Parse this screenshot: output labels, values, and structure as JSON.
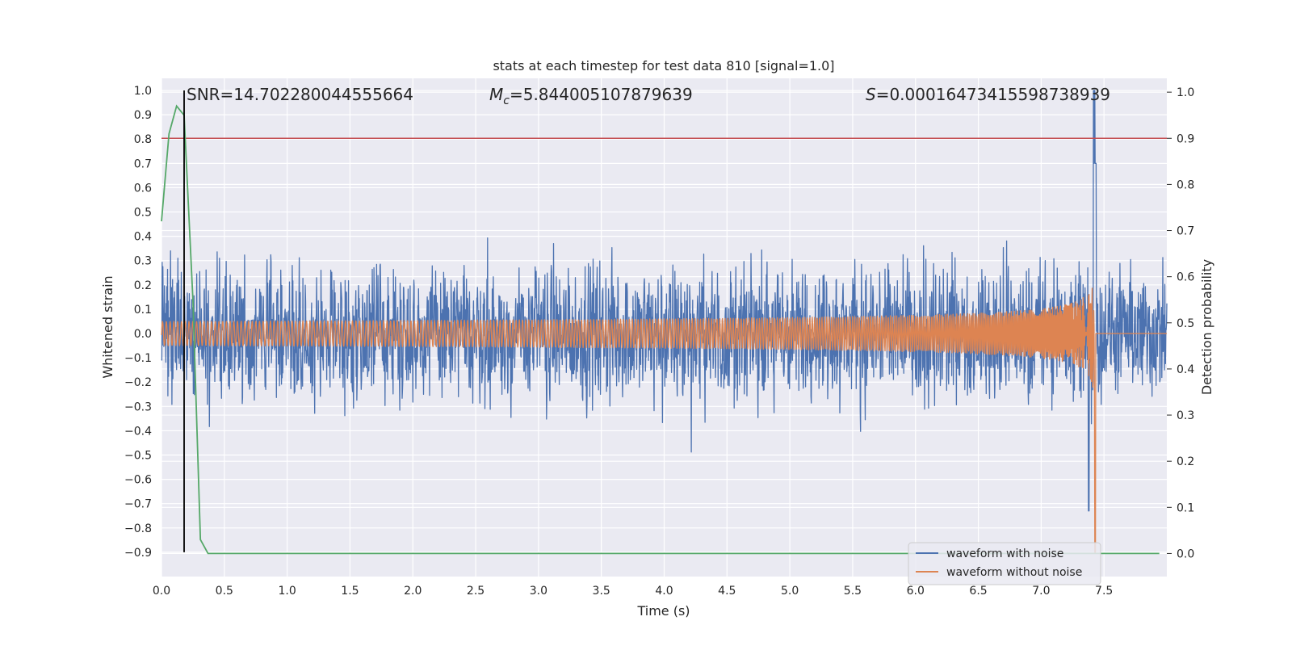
{
  "chart_data": {
    "type": "line",
    "title": "stats at each timestep for test data 810 [signal=1.0]",
    "xlabel": "Time (s)",
    "ylabel_left": "Whitened strain",
    "ylabel_right": "Detection probability",
    "xlim": [
      0.0,
      8.0
    ],
    "ylim_left": [
      -1.0,
      1.05
    ],
    "ylim_right": [
      -0.05,
      1.03
    ],
    "x_ticks": [
      0.0,
      0.5,
      1.0,
      1.5,
      2.0,
      2.5,
      3.0,
      3.5,
      4.0,
      4.5,
      5.0,
      5.5,
      6.0,
      6.5,
      7.0,
      7.5
    ],
    "x_tick_labels": [
      "0.0",
      "0.5",
      "1.0",
      "1.5",
      "2.0",
      "2.5",
      "3.0",
      "3.5",
      "4.0",
      "4.5",
      "5.0",
      "5.5",
      "6.0",
      "6.5",
      "7.0",
      "7.5"
    ],
    "y_ticks_left": [
      1.0,
      0.9,
      0.8,
      0.7,
      0.6,
      0.5,
      0.4,
      0.3,
      0.2,
      0.1,
      0.0,
      -0.1,
      -0.2,
      -0.3,
      -0.4,
      -0.5,
      -0.6,
      -0.7,
      -0.8,
      -0.9
    ],
    "y_tick_labels_left": [
      "1.0",
      "0.9",
      "0.8",
      "0.7",
      "0.6",
      "0.5",
      "0.4",
      "0.3",
      "0.2",
      "0.1",
      "0.0",
      "−0.1",
      "−0.2",
      "−0.3",
      "−0.4",
      "−0.5",
      "−0.6",
      "−0.7",
      "−0.8",
      "−0.9"
    ],
    "y_ticks_right": [
      1.0,
      0.9,
      0.8,
      0.7,
      0.6,
      0.5,
      0.4,
      0.3,
      0.2,
      0.1,
      0.0
    ],
    "y_tick_labels_right": [
      "1.0",
      "0.9",
      "0.8",
      "0.7",
      "0.6",
      "0.5",
      "0.4",
      "0.3",
      "0.2",
      "0.1",
      "0.0"
    ],
    "grid": true,
    "background_color": "#EAEAF2",
    "annotations": {
      "snr": "SNR=14.702280044555664",
      "mc_symbol": "M",
      "mc_subscript": "c",
      "mc_value": "=5.844005107879639",
      "s_symbol": "S",
      "s_value": "=0.00016473415598738939"
    },
    "vertical_line": {
      "x": 0.18,
      "color": "#000000"
    },
    "threshold_line": {
      "axis": "right",
      "y": 0.9,
      "color": "#C44E52"
    },
    "merger_time": 7.43,
    "series": [
      {
        "name": "waveform with noise",
        "axis": "left",
        "color": "#4C72B0",
        "envelope_description_only": false,
        "typical_amplitude": 0.28,
        "peak_value": 1.0,
        "min_value": -0.73,
        "x_range": [
          0.0,
          8.0
        ]
      },
      {
        "name": "waveform without noise",
        "axis": "left",
        "color": "#DD8452",
        "start_amplitude": 0.05,
        "peak_value": 0.72,
        "min_value": -0.9,
        "x_range": [
          0.0,
          8.0
        ]
      },
      {
        "name": "detection probability",
        "axis": "right",
        "color": "#55A868",
        "x": [
          0.0,
          0.06,
          0.12,
          0.18,
          0.25,
          0.31,
          0.37,
          0.5,
          1.0,
          2.0,
          3.0,
          4.0,
          5.0,
          6.0,
          7.0,
          7.94
        ],
        "values": [
          0.72,
          0.91,
          0.97,
          0.95,
          0.55,
          0.03,
          0.0,
          0.0,
          0.0,
          0.0,
          0.0,
          0.0,
          0.0,
          0.0,
          0.0,
          0.0
        ]
      }
    ],
    "legend": {
      "placement": "lower-right",
      "entries": [
        {
          "label": "waveform with noise",
          "color": "#4C72B0"
        },
        {
          "label": "waveform without noise",
          "color": "#DD8452"
        }
      ]
    }
  }
}
